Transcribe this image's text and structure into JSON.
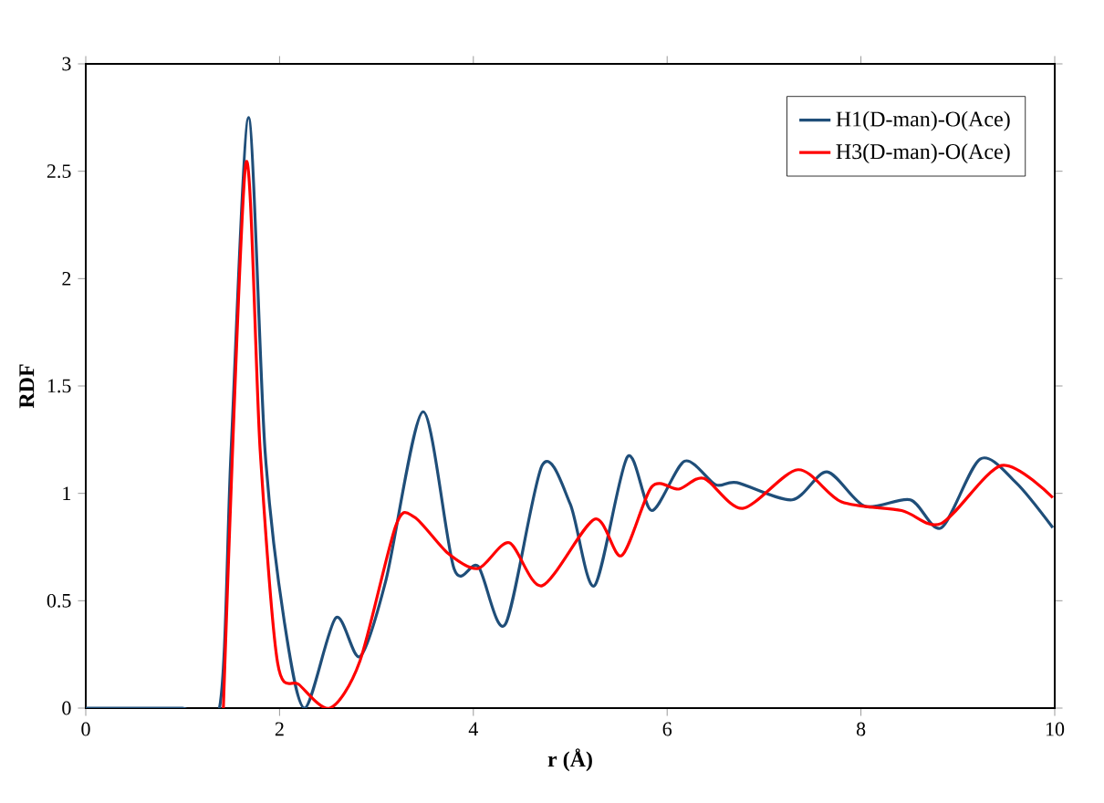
{
  "chart_data": {
    "type": "line",
    "xlabel": "r (Å)",
    "ylabel": "RDF",
    "xlim": [
      0,
      10
    ],
    "ylim": [
      0,
      3
    ],
    "xticks": [
      0,
      2,
      4,
      6,
      8,
      10
    ],
    "yticks": [
      0,
      0.5,
      1,
      1.5,
      2,
      2.5,
      3
    ],
    "grid": false,
    "legend": "top right",
    "marker": "none",
    "line_style": "solid",
    "series": [
      {
        "name": "H1(D-man)-O(Ace)",
        "color": "#1f4e79",
        "x": [
          0,
          0.5,
          1,
          1.38,
          1.5,
          1.68,
          1.85,
          2.05,
          2.26,
          2.58,
          2.83,
          3.1,
          3.48,
          3.8,
          4.05,
          4.33,
          4.71,
          5.0,
          5.25,
          5.59,
          5.84,
          6.18,
          6.5,
          6.72,
          7.29,
          7.65,
          8.04,
          8.51,
          8.83,
          9.23,
          9.6,
          9.98
        ],
        "values": [
          0,
          0,
          0,
          0,
          1.2,
          2.75,
          1.2,
          0.4,
          0,
          0.42,
          0.24,
          0.6,
          1.38,
          0.65,
          0.66,
          0.39,
          1.13,
          0.95,
          0.57,
          1.17,
          0.92,
          1.15,
          1.04,
          1.05,
          0.97,
          1.1,
          0.94,
          0.97,
          0.84,
          1.16,
          1.05,
          0.84
        ]
      },
      {
        "name": "H3(D-man)-O(Ace)",
        "color": "#ff0000",
        "x": [
          1.42,
          1.65,
          1.8,
          1.98,
          2.2,
          2.52,
          2.83,
          3.2,
          3.39,
          3.74,
          4.05,
          4.37,
          4.71,
          5.25,
          5.53,
          5.84,
          6.12,
          6.38,
          6.78,
          7.35,
          7.8,
          8.42,
          8.83,
          9.45,
          9.98
        ],
        "values": [
          0,
          2.53,
          1.2,
          0.21,
          0.11,
          0,
          0.22,
          0.85,
          0.89,
          0.72,
          0.65,
          0.77,
          0.57,
          0.88,
          0.71,
          1.03,
          1.02,
          1.07,
          0.93,
          1.11,
          0.96,
          0.92,
          0.86,
          1.13,
          0.98
        ]
      }
    ]
  }
}
